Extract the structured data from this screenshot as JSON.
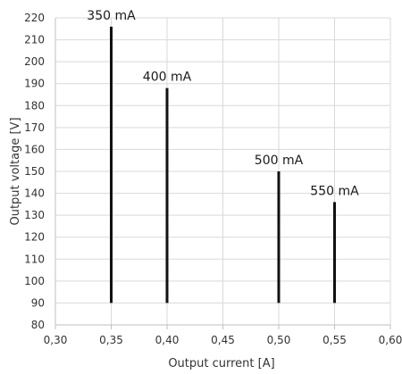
{
  "chart_data": {
    "type": "bar",
    "xlabel": "Output current [A]",
    "ylabel": "Output voltage [V]",
    "xlim": [
      0.3,
      0.6
    ],
    "ylim": [
      80,
      220
    ],
    "x_ticks": [
      "0,30",
      "0,35",
      "0,40",
      "0,45",
      "0,50",
      "0,55",
      "0,60"
    ],
    "y_ticks": [
      "80",
      "90",
      "100",
      "110",
      "120",
      "130",
      "140",
      "150",
      "160",
      "170",
      "180",
      "190",
      "200",
      "210",
      "220"
    ],
    "grid": true,
    "baseline": 90,
    "series": [
      {
        "x": 0.35,
        "min": 90,
        "max": 216,
        "label": "350 mA"
      },
      {
        "x": 0.4,
        "min": 90,
        "max": 188,
        "label": "400 mA"
      },
      {
        "x": 0.5,
        "min": 90,
        "max": 150,
        "label": "500 mA"
      },
      {
        "x": 0.55,
        "min": 90,
        "max": 136,
        "label": "550 mA"
      }
    ],
    "colors": {
      "bar": "#111111",
      "grid": "#d9d9d9",
      "axis": "#bfbfbf",
      "text": "#333333"
    }
  }
}
